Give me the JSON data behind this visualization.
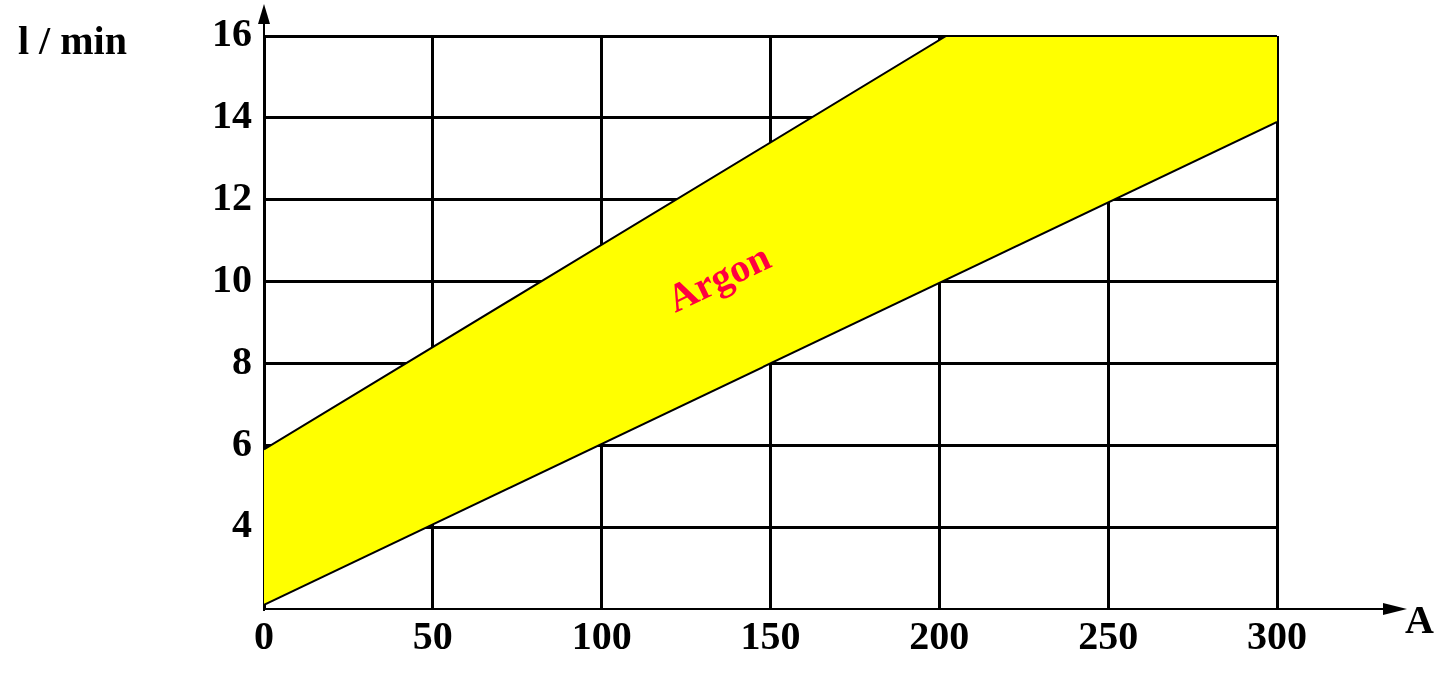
{
  "chart_data": {
    "type": "area",
    "xlabel": "A",
    "ylabel": "l / min",
    "series": [
      {
        "type": "line",
        "color": "#000000",
        "x": [
          0,
          300
        ],
        "values": [
          2.1,
          13.9
        ]
      },
      {
        "name": "Argon",
        "color": "#ffff00",
        "x": [
          0,
          202,
          300
        ],
        "values": [
          5.9,
          16,
          16
        ]
      }
    ],
    "xlim": [
      0,
      300
    ],
    "xticks": [
      0,
      50,
      100,
      150,
      200,
      250,
      300
    ],
    "ylim": [
      2,
      16
    ],
    "yticks": [
      4,
      6,
      8,
      10,
      12,
      14,
      16
    ],
    "grid": true,
    "legend": false
  }
}
